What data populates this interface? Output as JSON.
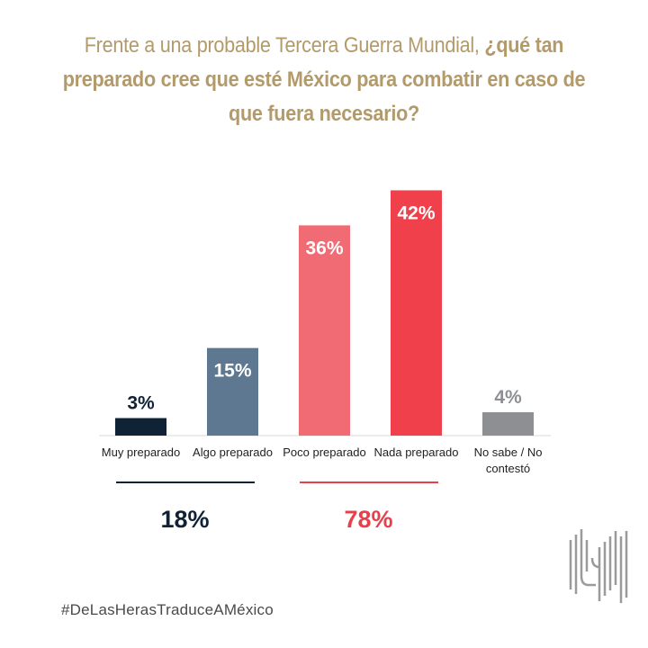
{
  "title": {
    "normal": "Frente a una probable Tercera Guerra Mundial, ",
    "bold": "¿qué tan preparado cree que esté México para combatir en caso de que fuera necesario?"
  },
  "colors": {
    "title": "#b39a6a",
    "group_prepared": "#0f2236",
    "group_unprepared": "#e8404b"
  },
  "chart_data": {
    "type": "bar",
    "categories": [
      "Muy preparado",
      "Algo preparado",
      "Poco preparado",
      "Nada preparado",
      "No sabe / No contestó"
    ],
    "values": [
      3,
      15,
      36,
      42,
      4
    ],
    "value_labels": [
      "3%",
      "15%",
      "36%",
      "42%",
      "4%"
    ],
    "bar_colors": [
      "#0f2236",
      "#5e7891",
      "#f06b74",
      "#ef404c",
      "#8d8f93"
    ],
    "label_colors": [
      "#0f2236",
      "#ffffff",
      "#ffffff",
      "#ffffff",
      "#8d8f93"
    ],
    "ylim": [
      0,
      45
    ],
    "groups": [
      {
        "total": "18%",
        "color": "#0f2236",
        "spans": [
          0,
          1
        ]
      },
      {
        "total": "78%",
        "color": "#e8404b",
        "spans": [
          2,
          3
        ]
      }
    ]
  },
  "hashtag": "#DeLasHerasTraduceAMéxico",
  "logo_icon": "de-las-heras-logo-icon"
}
